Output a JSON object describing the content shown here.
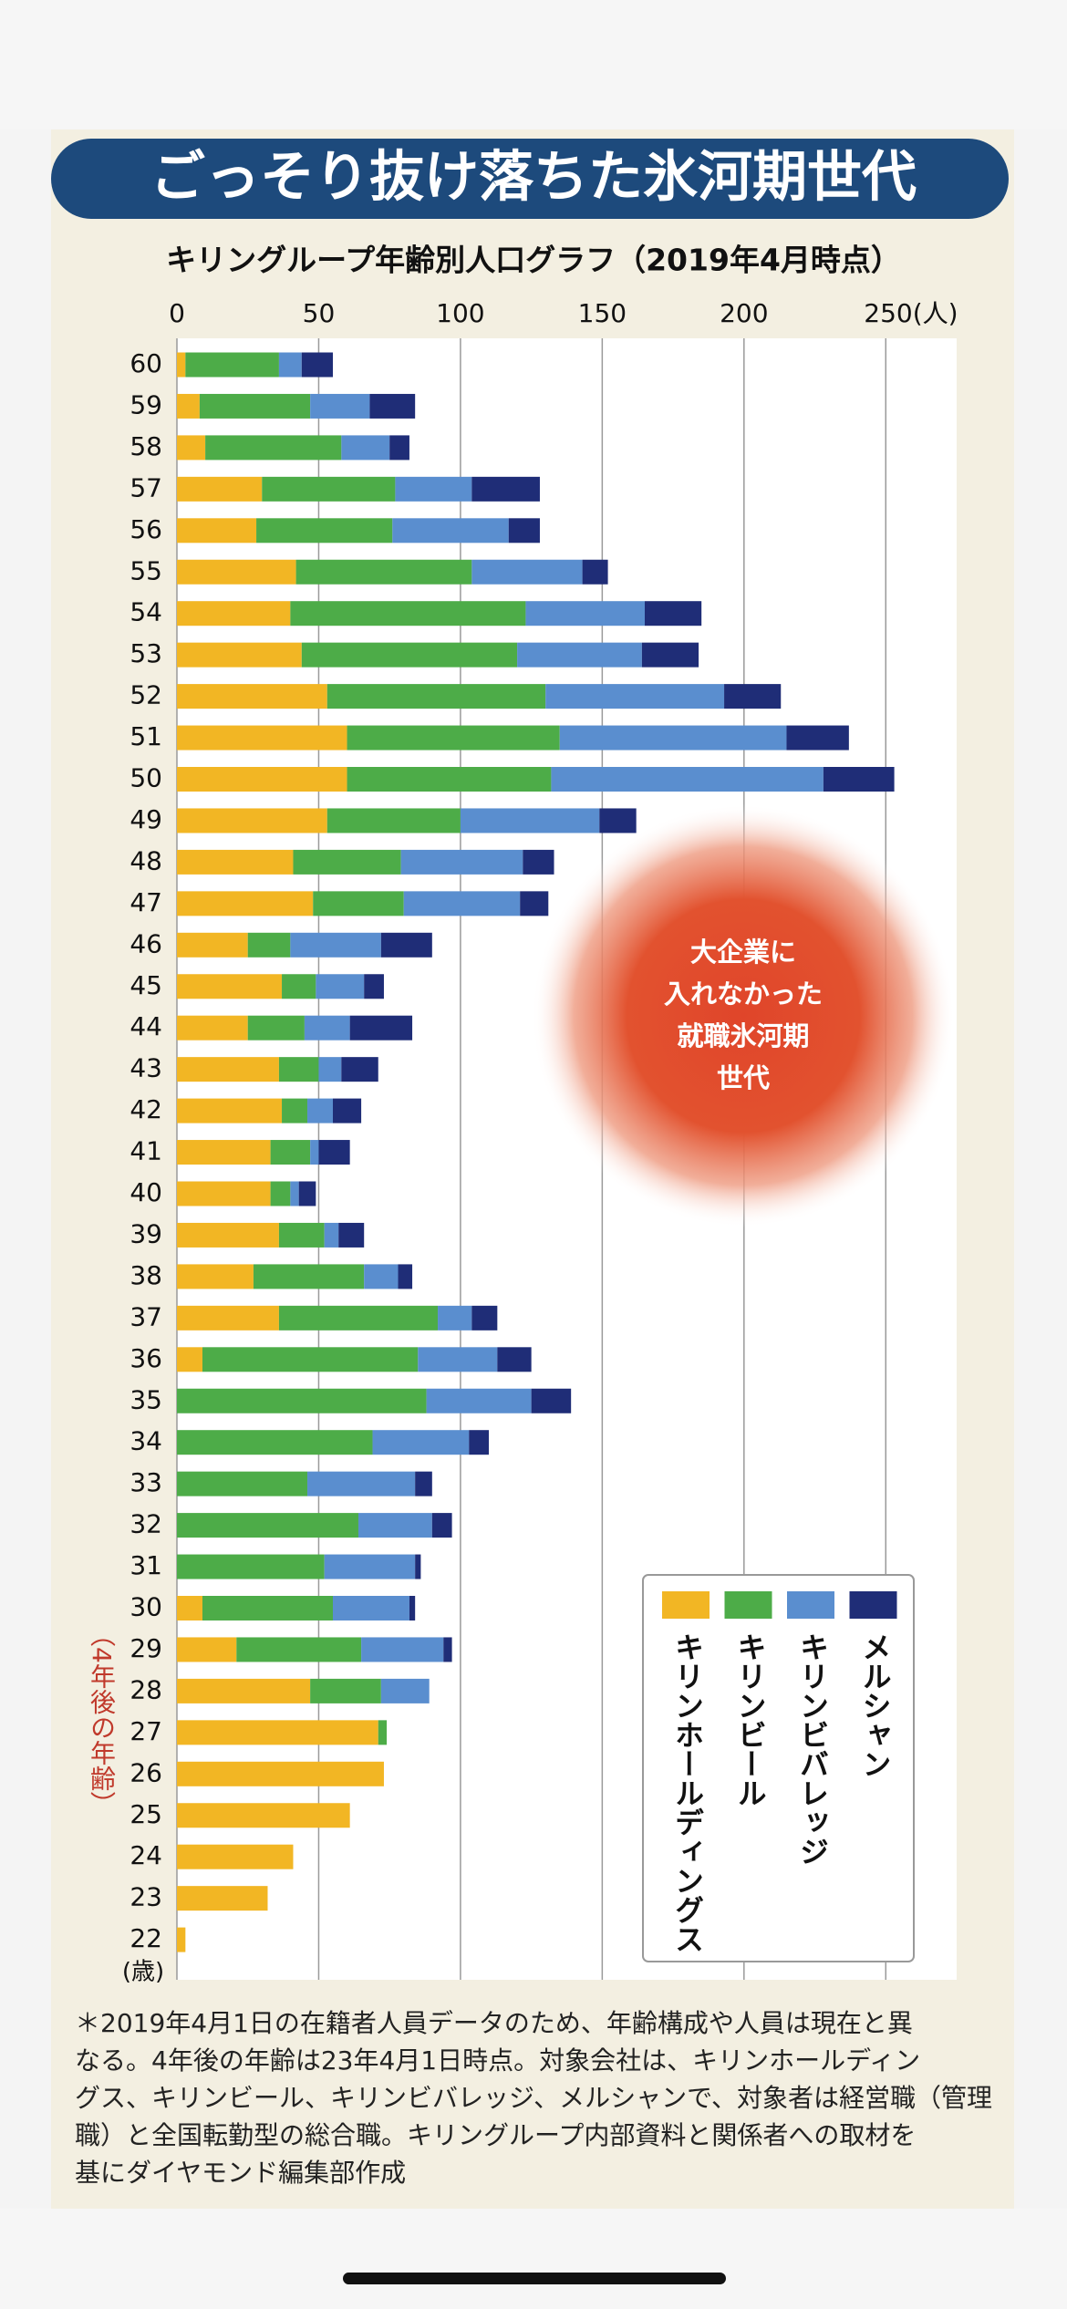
{
  "chart_data": {
    "type": "bar",
    "orientation": "horizontal",
    "stacked": true,
    "title": "ごっそり抜け落ちた氷河期世代",
    "subtitle": "キリングループ年齢別人口グラフ（2019年4月時点）",
    "y_unit": "(歳)",
    "categories": [
      "60",
      "59",
      "58",
      "57",
      "56",
      "55",
      "54",
      "53",
      "52",
      "51",
      "50",
      "49",
      "48",
      "47",
      "46",
      "45",
      "44",
      "43",
      "42",
      "41",
      "40",
      "39",
      "38",
      "37",
      "36",
      "35",
      "34",
      "33",
      "32",
      "31",
      "30",
      "29",
      "28",
      "27",
      "26",
      "25",
      "24",
      "23",
      "22"
    ],
    "future_age_labels": [
      "",
      "",
      "",
      "",
      null,
      null,
      null,
      null,
      null,
      null,
      null,
      null,
      null,
      null,
      null,
      null,
      null,
      null,
      null,
      null,
      null,
      null,
      null,
      null,
      null,
      null,
      null,
      null,
      null,
      null,
      null,
      null,
      null,
      null,
      null,
      null,
      null,
      null,
      null
    ],
    "future_age_note": "（4年後の年齢）",
    "series": [
      {
        "name": "キリンホールディングス",
        "color": "#f2b624",
        "values": [
          3,
          8,
          10,
          30,
          28,
          42,
          40,
          44,
          53,
          60,
          60,
          53,
          41,
          48,
          25,
          37,
          25,
          36,
          37,
          33,
          33,
          36,
          27,
          36,
          9,
          0,
          0,
          0,
          0,
          0,
          9,
          21,
          47,
          71,
          73,
          61,
          41,
          32,
          3
        ]
      },
      {
        "name": "キリンビール",
        "color": "#4dac48",
        "values": [
          33,
          39,
          48,
          47,
          48,
          62,
          83,
          76,
          77,
          75,
          72,
          47,
          38,
          32,
          15,
          12,
          20,
          14,
          9,
          14,
          7,
          16,
          39,
          56,
          76,
          88,
          69,
          46,
          64,
          52,
          46,
          44,
          25,
          3,
          0,
          0,
          0,
          0,
          0
        ]
      },
      {
        "name": "キリンビバレッジ",
        "color": "#5a8ecf",
        "values": [
          8,
          21,
          17,
          27,
          41,
          39,
          42,
          44,
          63,
          80,
          96,
          49,
          43,
          41,
          32,
          17,
          16,
          8,
          9,
          3,
          3,
          5,
          12,
          12,
          28,
          37,
          34,
          38,
          26,
          32,
          27,
          29,
          17,
          0,
          0,
          0,
          0,
          0,
          0
        ]
      },
      {
        "name": "メルシャン",
        "color": "#1f2d77",
        "values": [
          11,
          16,
          7,
          24,
          11,
          9,
          20,
          20,
          20,
          22,
          25,
          13,
          11,
          10,
          18,
          7,
          22,
          13,
          10,
          11,
          6,
          9,
          5,
          9,
          12,
          14,
          7,
          6,
          7,
          2,
          2,
          3,
          0,
          0,
          0,
          0,
          0,
          0,
          0
        ]
      }
    ],
    "xlim": [
      0,
      275
    ],
    "xticks": [
      0,
      50,
      100,
      150,
      200,
      {
        "value": 250,
        "label": "250(人)"
      }
    ],
    "grid": true,
    "annotation": [
      "大企業に",
      "入れなかった",
      "就職氷河期",
      "世代"
    ],
    "footnote": [
      "＊2019年4月1日の在籍者人員データのため、年齢構成や人員は現在と異",
      "なる。4年後の年齢は23年4月1日時点。対象会社は、キリンホールディン",
      "グス、キリンビール、キリンビバレッジ、メルシャンで、対象者は経営職（管理",
      "職）と全国転勤型の総合職。キリングループ内部資料と関係者への取材を",
      "基にダイヤモンド編集部作成"
    ]
  }
}
